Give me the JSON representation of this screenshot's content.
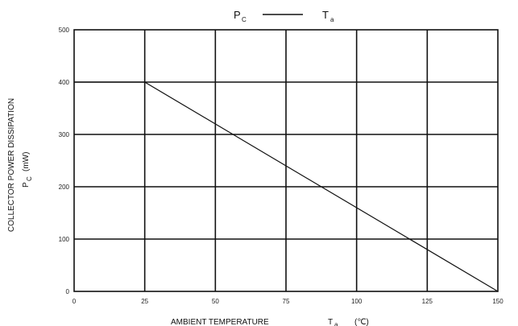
{
  "chart_data": {
    "type": "line",
    "title": {
      "left_symbol": "P",
      "left_subscript": "C",
      "right_symbol": "T",
      "right_subscript": "a"
    },
    "xlabel": {
      "main": "AMBIENT TEMPERATURE",
      "symbol": "T",
      "subscript": "a",
      "unit": "(℃)"
    },
    "ylabel": {
      "line1": "COLLECTOR POWER DISSIPATION",
      "symbol": "P",
      "subscript": "C",
      "unit": "(mW)"
    },
    "xlim": [
      0,
      150
    ],
    "ylim": [
      0,
      500
    ],
    "x_ticks": [
      0,
      25,
      50,
      75,
      100,
      125,
      150
    ],
    "y_ticks": [
      0,
      100,
      200,
      300,
      400,
      500
    ],
    "grid": true,
    "series": [
      {
        "x": [
          0,
          25,
          150
        ],
        "y": [
          400,
          400,
          0
        ]
      }
    ]
  }
}
